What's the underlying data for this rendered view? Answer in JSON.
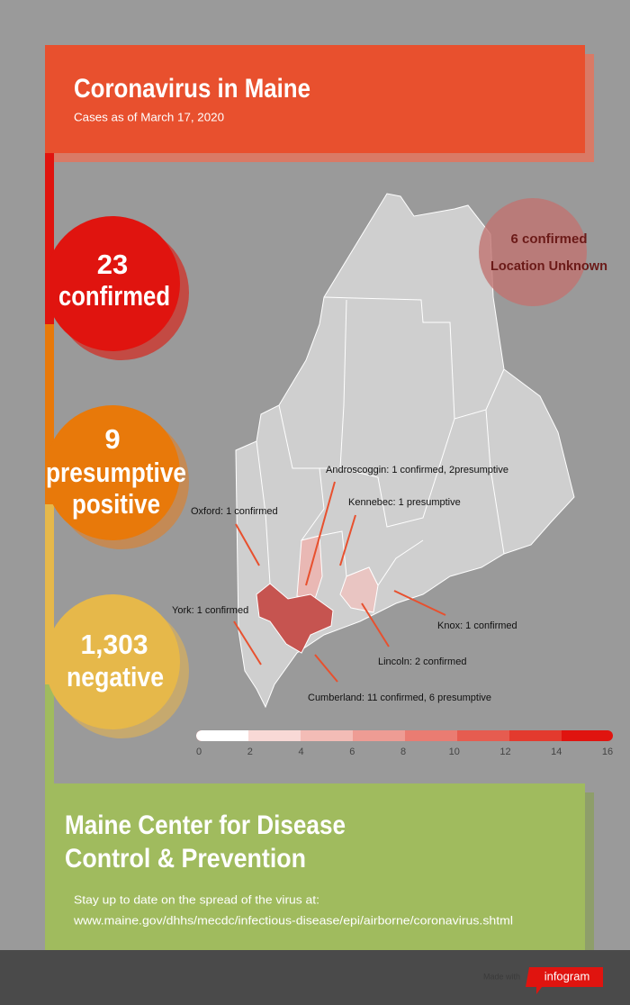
{
  "header": {
    "title": "Coronavirus in Maine",
    "subtitle": "Cases as of March 17, 2020"
  },
  "stats": [
    {
      "lines": [
        "23",
        "confirmed"
      ]
    },
    {
      "lines": [
        "9",
        "presumptive",
        "positive"
      ]
    },
    {
      "lines": [
        "1,303",
        "negative"
      ]
    }
  ],
  "unknown": {
    "lines": [
      "6 confirmed",
      "Location Unknown"
    ]
  },
  "map": {
    "annotations": [
      "Androscoggin: 1 confirmed, 2presumptive",
      "Kennebec: 1 presumptive",
      "Oxford: 1 confirmed",
      "York: 1 confirmed",
      "Knox: 1 confirmed",
      "Lincoln: 2 confirmed",
      "Cumberland: 11 confirmed, 6 presumptive"
    ],
    "legend_ticks": [
      0,
      2,
      4,
      6,
      8,
      10,
      12,
      14,
      16
    ]
  },
  "info": {
    "title_lines": [
      "Maine Center for Disease",
      "Control & Prevention"
    ],
    "text_lines": [
      "Stay up to date on the spread of the virus at:",
      "www.maine.gov/dhhs/mecdc/infectious-disease/epi/airborne/coronavirus.shtml"
    ]
  },
  "credit": {
    "made_with": "Made with",
    "brand": "infogram"
  }
}
